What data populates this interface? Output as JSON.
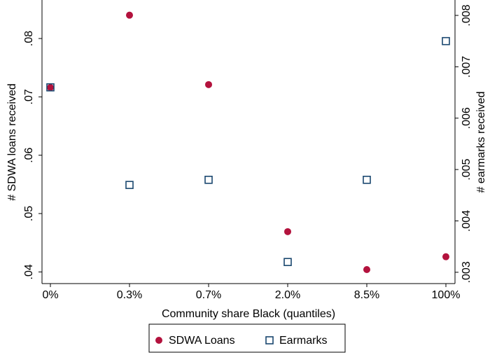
{
  "chart_data": {
    "type": "scatter",
    "xlabel": "Community share Black (quantiles)",
    "ylabel": "# SDWA loans received",
    "y2label": "# earmarks received",
    "categories": [
      "0%",
      "0.3%",
      "0.7%",
      "2.0%",
      "8.5%",
      "100%"
    ],
    "series": [
      {
        "name": "SDWA Loans",
        "color": "#b3123d",
        "marker": "circle",
        "values": [
          0.0716,
          0.084,
          0.0721,
          0.0469,
          0.0404,
          0.0426
        ]
      },
      {
        "name": "Earmarks",
        "color": "#1a476f",
        "marker": "square",
        "axis": "y2",
        "values": [
          0.0066,
          0.0047,
          0.0048,
          0.0032,
          0.0048,
          0.0075
        ]
      }
    ],
    "ylim": [
      0.038,
      0.0866
    ],
    "yticks": [
      {
        "value": 0.04,
        "label": ".04"
      },
      {
        "value": 0.05,
        "label": ".05"
      },
      {
        "value": 0.06,
        "label": ".06"
      },
      {
        "value": 0.07,
        "label": ".07"
      },
      {
        "value": 0.08,
        "label": ".08"
      }
    ],
    "y2lim": [
      0.00278,
      0.0083
    ],
    "y2ticks": [
      {
        "value": 0.003,
        "label": ".003"
      },
      {
        "value": 0.004,
        "label": ".004"
      },
      {
        "value": 0.005,
        "label": ".005"
      },
      {
        "value": 0.006,
        "label": ".006"
      },
      {
        "value": 0.007,
        "label": ".007"
      },
      {
        "value": 0.008,
        "label": ".008"
      }
    ],
    "legend": "bottom"
  }
}
